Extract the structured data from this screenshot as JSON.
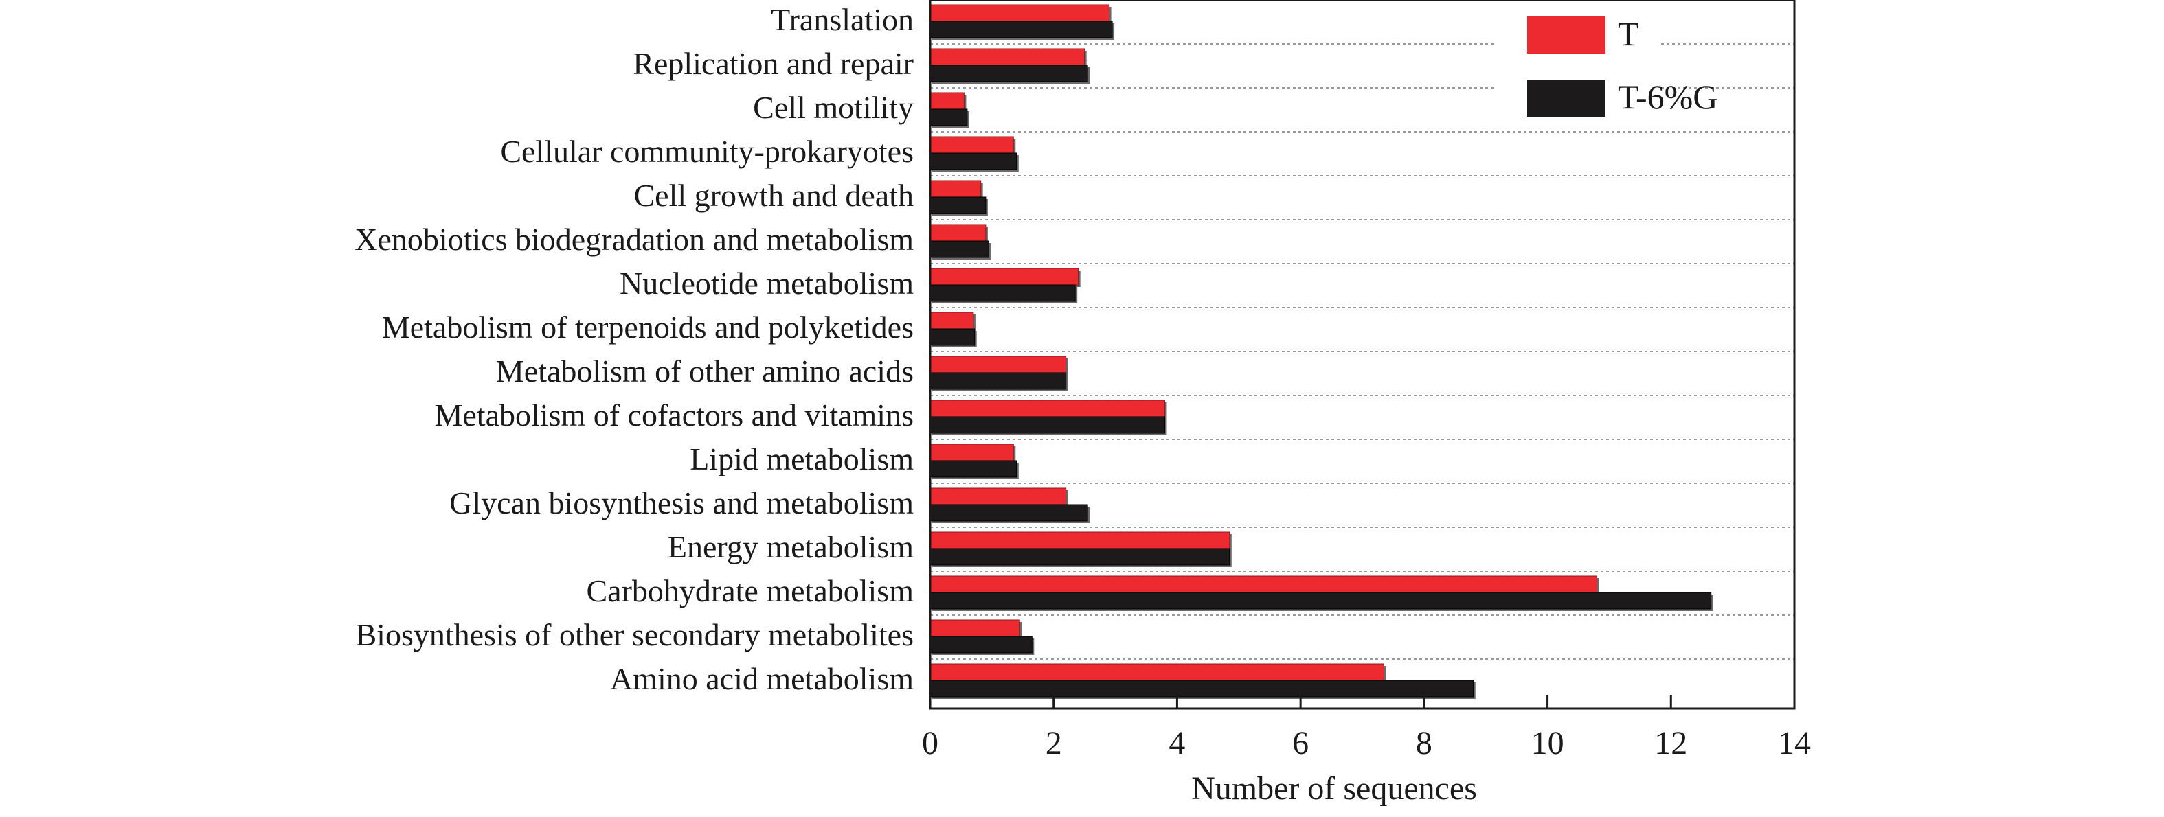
{
  "chart_data": {
    "type": "bar",
    "orientation": "horizontal",
    "categories": [
      "Translation",
      "Replication and repair",
      "Cell motility",
      "Cellular community-prokaryotes",
      "Cell growth and death",
      "Xenobiotics biodegradation and metabolism",
      "Nucleotide metabolism",
      "Metabolism of terpenoids and polyketides",
      "Metabolism of other amino acids",
      "Metabolism of cofactors and vitamins",
      "Lipid metabolism",
      "Glycan biosynthesis and metabolism",
      "Energy metabolism",
      "Carbohydrate metabolism",
      "Biosynthesis of other secondary metabolites",
      "Amino acid metabolism"
    ],
    "series": [
      {
        "name": "T",
        "color": "#ee2a31",
        "values": [
          2.9,
          2.5,
          0.55,
          1.35,
          0.82,
          0.9,
          2.4,
          0.7,
          2.2,
          3.8,
          1.35,
          2.2,
          4.85,
          10.8,
          1.45,
          7.35
        ]
      },
      {
        "name": "T-6%G",
        "color": "#1d1a1b",
        "values": [
          2.95,
          2.55,
          0.6,
          1.4,
          0.9,
          0.95,
          2.35,
          0.72,
          2.2,
          3.8,
          1.4,
          2.55,
          4.85,
          12.65,
          1.65,
          8.8
        ]
      }
    ],
    "xlabel": "Number of sequences",
    "ylabel": "",
    "xlim": [
      0,
      14
    ],
    "xticks": [
      "0",
      "2",
      "4",
      "6",
      "8",
      "10",
      "12",
      "14"
    ],
    "grid": "horizontal dotted",
    "legend": "top-right"
  }
}
